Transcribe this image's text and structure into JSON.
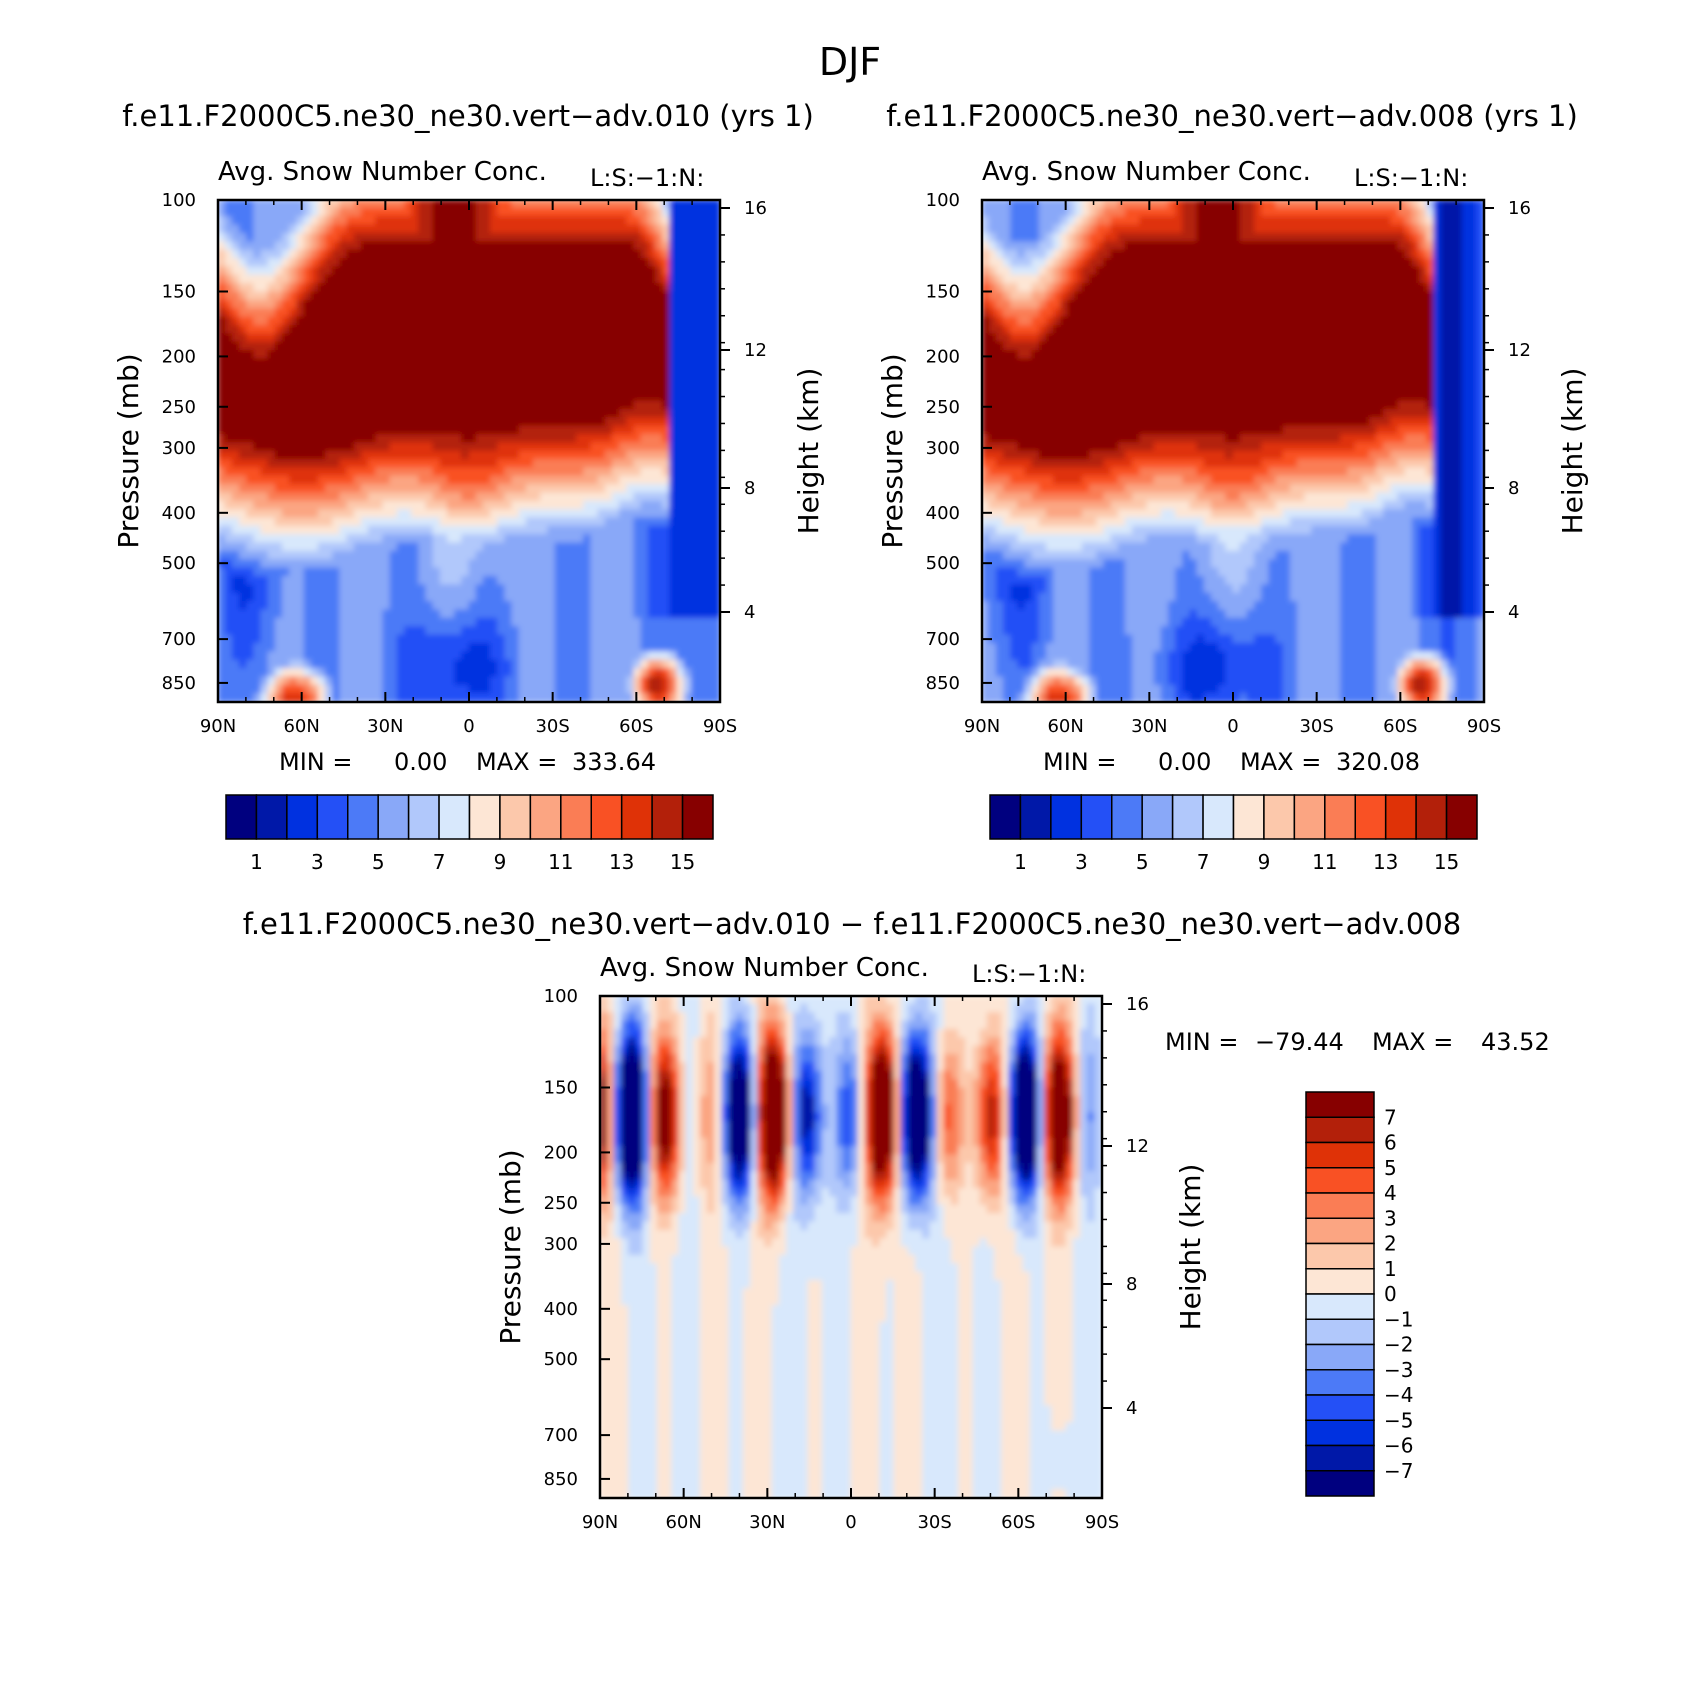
{
  "figure": {
    "title": "DJF"
  },
  "colors": {
    "abs_scale": [
      "#00007f",
      "#0018a8",
      "#0031e0",
      "#2450f6",
      "#4c7af7",
      "#89a8f8",
      "#b1c8fb",
      "#d8e8fc",
      "#fde6d5",
      "#fcc8ab",
      "#fba582",
      "#fa7d55",
      "#f95124",
      "#df3207",
      "#b3200a",
      "#870000"
    ],
    "diff_scale": [
      "#870000",
      "#b3200a",
      "#df3207",
      "#f95124",
      "#fa7d55",
      "#fba582",
      "#fcc8ab",
      "#fde6d5",
      "#d8e8fc",
      "#b1c8fb",
      "#89a8f8",
      "#4c7af7",
      "#2450f6",
      "#0031e0",
      "#0018a8",
      "#00007f"
    ]
  },
  "chart_data": [
    {
      "type": "heatmap",
      "case_title": "f.e11.F2000C5.ne30_ne30.vert−adv.010 (yrs 1)",
      "title": "Avg. Snow Number Conc.",
      "subtitle_right": "L:S:−1:N:",
      "ylabel": "Pressure (mb)",
      "ylabel_right": "Height (km)",
      "x_ticks": [
        "90N",
        "60N",
        "30N",
        "0",
        "30S",
        "60S",
        "90S"
      ],
      "y_ticks": [
        "100",
        "150",
        "200",
        "250",
        "300",
        "400",
        "500",
        "700",
        "850"
      ],
      "y_right_ticks": [
        "16",
        "12",
        "8",
        "4"
      ],
      "stats": {
        "min_label": "MIN =",
        "min": "0.00",
        "max_label": "MAX =",
        "max": "333.64"
      },
      "colorbar_labels": [
        "1",
        "3",
        "5",
        "7",
        "9",
        "11",
        "13",
        "15"
      ]
    },
    {
      "type": "heatmap",
      "case_title": "f.e11.F2000C5.ne30_ne30.vert−adv.008 (yrs 1)",
      "title": "Avg. Snow Number Conc.",
      "subtitle_right": "L:S:−1:N:",
      "ylabel": "Pressure (mb)",
      "ylabel_right": "Height (km)",
      "x_ticks": [
        "90N",
        "60N",
        "30N",
        "0",
        "30S",
        "60S",
        "90S"
      ],
      "y_ticks": [
        "100",
        "150",
        "200",
        "250",
        "300",
        "400",
        "500",
        "700",
        "850"
      ],
      "y_right_ticks": [
        "16",
        "12",
        "8",
        "4"
      ],
      "stats": {
        "min_label": "MIN =",
        "min": "0.00",
        "max_label": "MAX =",
        "max": "320.08"
      },
      "colorbar_labels": [
        "1",
        "3",
        "5",
        "7",
        "9",
        "11",
        "13",
        "15"
      ]
    },
    {
      "type": "heatmap",
      "case_title": "f.e11.F2000C5.ne30_ne30.vert−adv.010 − f.e11.F2000C5.ne30_ne30.vert−adv.008",
      "title": "Avg. Snow Number Conc.",
      "subtitle_right": "L:S:−1:N:",
      "ylabel": "Pressure (mb)",
      "ylabel_right": "Height (km)",
      "x_ticks": [
        "90N",
        "60N",
        "30N",
        "0",
        "30S",
        "60S",
        "90S"
      ],
      "y_ticks": [
        "100",
        "150",
        "200",
        "250",
        "300",
        "400",
        "500",
        "700",
        "850"
      ],
      "y_right_ticks": [
        "16",
        "12",
        "8",
        "4"
      ],
      "stats": {
        "min_label": "MIN =",
        "min": "−79.44",
        "max_label": "MAX =",
        "max": "43.52"
      },
      "colorbar_labels": [
        "7",
        "6",
        "5",
        "4",
        "3",
        "2",
        "1",
        "0",
        "−1",
        "−2",
        "−3",
        "−4",
        "−5",
        "−6",
        "−7"
      ]
    }
  ]
}
